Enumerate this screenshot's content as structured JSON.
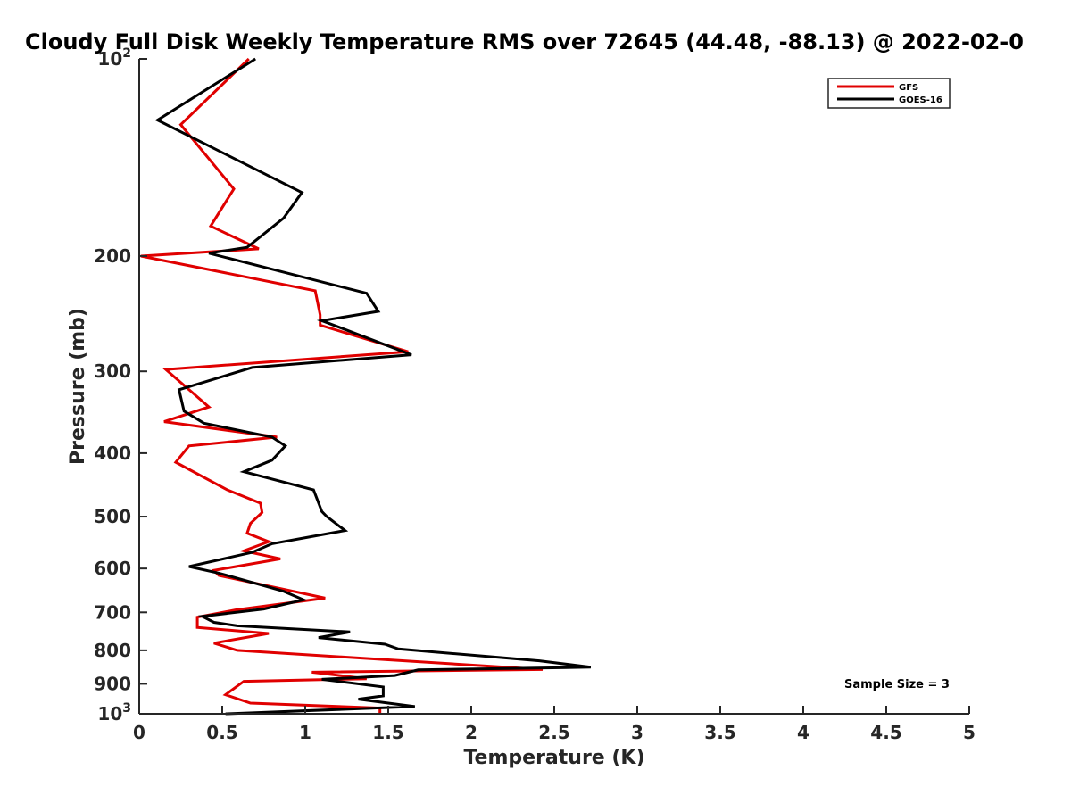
{
  "chart_data": {
    "type": "line",
    "title": "Cloudy Full Disk Weekly Temperature RMS over 72645 (44.48, -88.13) @ 2022-02-0",
    "xlabel": "Temperature (K)",
    "ylabel": "Pressure (mb)",
    "xlim": [
      0,
      5
    ],
    "ylim": [
      100,
      1000
    ],
    "y_scale": "log",
    "y_reversed": true,
    "x_ticks": [
      "0",
      "0.5",
      "1",
      "1.5",
      "2",
      "2.5",
      "3",
      "3.5",
      "4",
      "4.5",
      "5"
    ],
    "y_ticks": [
      {
        "value": 100,
        "base": "10",
        "exp": "2"
      },
      {
        "value": 200,
        "label": "200"
      },
      {
        "value": 300,
        "label": "300"
      },
      {
        "value": 400,
        "label": "400"
      },
      {
        "value": 500,
        "label": "500"
      },
      {
        "value": 600,
        "label": "600"
      },
      {
        "value": 700,
        "label": "700"
      },
      {
        "value": 800,
        "label": "800"
      },
      {
        "value": 900,
        "label": "900"
      },
      {
        "value": 1000,
        "base": "10",
        "exp": "3"
      }
    ],
    "legend_position": "top-right",
    "annotation": "Sample Size = 3",
    "grid": false,
    "series": [
      {
        "name": "GFS",
        "color": "#e00000",
        "x": [
          0.66,
          0.25,
          0.57,
          0.43,
          0.72,
          0.01,
          1.06,
          1.09,
          1.09,
          1.62,
          0.16,
          0.42,
          0.15,
          0.83,
          0.3,
          0.22,
          0.53,
          0.73,
          0.74,
          0.67,
          0.65,
          0.78,
          0.63,
          0.85,
          0.45,
          0.48,
          0.89,
          1.12,
          0.58,
          0.35,
          0.35,
          0.78,
          0.45,
          0.59,
          2.43,
          1.04,
          1.37,
          0.63,
          0.52,
          0.67,
          1.45,
          1.45
        ],
        "y": [
          100,
          126,
          158,
          180,
          195,
          200,
          226,
          246,
          255,
          280,
          298,
          340,
          358,
          378,
          390,
          413,
          455,
          477,
          493,
          512,
          530,
          546,
          564,
          580,
          604,
          615,
          647,
          666,
          694,
          712,
          738,
          754,
          780,
          800,
          856,
          864,
          884,
          892,
          935,
          963,
          980,
          1000
        ]
      },
      {
        "name": "GOES-16",
        "color": "#000000",
        "x": [
          0.7,
          0.11,
          0.98,
          0.87,
          0.65,
          0.42,
          1.37,
          1.44,
          1.1,
          1.64,
          0.68,
          0.24,
          0.27,
          0.39,
          0.8,
          0.88,
          0.8,
          0.63,
          1.05,
          1.1,
          1.13,
          1.24,
          0.8,
          0.68,
          0.3,
          0.48,
          0.87,
          0.99,
          0.75,
          0.38,
          0.45,
          0.59,
          1.27,
          1.08,
          1.48,
          1.56,
          2.41,
          2.72,
          1.68,
          1.54,
          1.1,
          1.47,
          1.47,
          1.32,
          1.66,
          0.52
        ],
        "y": [
          100,
          124,
          160,
          175,
          194,
          198,
          228,
          243,
          251,
          283,
          296,
          320,
          345,
          360,
          378,
          390,
          410,
          427,
          455,
          491,
          500,
          525,
          550,
          567,
          596,
          610,
          650,
          670,
          692,
          710,
          725,
          734,
          750,
          765,
          783,
          796,
          830,
          849,
          857,
          874,
          886,
          910,
          939,
          950,
          975,
          1000
        ]
      }
    ]
  }
}
